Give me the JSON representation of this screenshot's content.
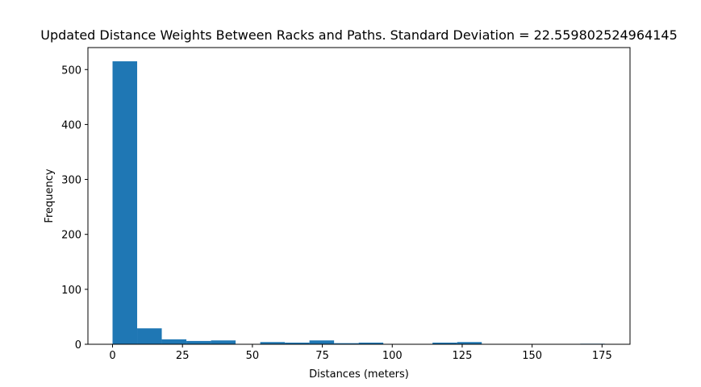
{
  "chart_data": {
    "type": "bar",
    "title": "Updated Distance Weights Between Racks and Paths. Standard Deviation = 22.559802524964145",
    "xlabel": "Distances (meters)",
    "ylabel": "Frequency",
    "xlim": [
      -8.8,
      185
    ],
    "ylim": [
      0,
      540
    ],
    "xticks": [
      0,
      25,
      50,
      75,
      100,
      125,
      150,
      175
    ],
    "yticks": [
      0,
      100,
      200,
      300,
      400,
      500
    ],
    "grid": false,
    "bar_color": "#1f77b4",
    "bins": [
      {
        "x0": 0.0,
        "x1": 8.8,
        "count": 515
      },
      {
        "x0": 8.8,
        "x1": 17.6,
        "count": 29
      },
      {
        "x0": 17.6,
        "x1": 26.4,
        "count": 9
      },
      {
        "x0": 26.4,
        "x1": 35.2,
        "count": 6
      },
      {
        "x0": 35.2,
        "x1": 44.0,
        "count": 7
      },
      {
        "x0": 44.0,
        "x1": 52.8,
        "count": 0
      },
      {
        "x0": 52.8,
        "x1": 61.6,
        "count": 4
      },
      {
        "x0": 61.6,
        "x1": 70.4,
        "count": 3
      },
      {
        "x0": 70.4,
        "x1": 79.2,
        "count": 7
      },
      {
        "x0": 79.2,
        "x1": 88.0,
        "count": 2
      },
      {
        "x0": 88.0,
        "x1": 96.8,
        "count": 3
      },
      {
        "x0": 96.8,
        "x1": 105.6,
        "count": 0
      },
      {
        "x0": 105.6,
        "x1": 114.4,
        "count": 0
      },
      {
        "x0": 114.4,
        "x1": 123.2,
        "count": 3
      },
      {
        "x0": 123.2,
        "x1": 132.0,
        "count": 4
      },
      {
        "x0": 132.0,
        "x1": 140.8,
        "count": 0
      },
      {
        "x0": 140.8,
        "x1": 149.6,
        "count": 0
      },
      {
        "x0": 149.6,
        "x1": 158.4,
        "count": 0
      },
      {
        "x0": 158.4,
        "x1": 167.2,
        "count": 0
      },
      {
        "x0": 167.2,
        "x1": 176.0,
        "count": 1
      }
    ]
  }
}
